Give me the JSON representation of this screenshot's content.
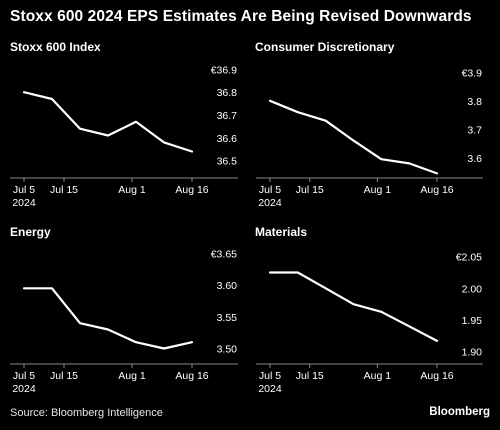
{
  "title": "Stoxx 600 2024 EPS Estimates Are Being Revised Downwards",
  "source": "Source: Bloomberg Intelligence",
  "brand": "Bloomberg",
  "colors": {
    "background": "#000000",
    "line": "#ffffff",
    "text": "#ffffff"
  },
  "chart_data": [
    {
      "type": "line",
      "title": "Stoxx 600 Index",
      "x_ticks": [
        "Jul 5",
        "Jul 15",
        "Aug 1",
        "Aug 16"
      ],
      "x_subtick": "2024",
      "x_range": [
        "2024-07-05",
        "2024-08-16"
      ],
      "x": [
        "2024-07-05",
        "2024-07-12",
        "2024-07-19",
        "2024-07-26",
        "2024-08-02",
        "2024-08-09",
        "2024-08-16"
      ],
      "values": [
        36.8,
        36.77,
        36.64,
        36.61,
        36.67,
        36.58,
        36.54
      ],
      "ylim": [
        36.45,
        36.95
      ],
      "y_ticks": [
        {
          "value": 36.9,
          "label": "€36.9"
        },
        {
          "value": 36.8,
          "label": "36.8"
        },
        {
          "value": 36.7,
          "label": "36.7"
        },
        {
          "value": 36.6,
          "label": "36.6"
        },
        {
          "value": 36.5,
          "label": "36.5"
        }
      ]
    },
    {
      "type": "line",
      "title": "Consumer Discretionary",
      "x_ticks": [
        "Jul 5",
        "Jul 15",
        "Aug 1",
        "Aug 16"
      ],
      "x_subtick": "2024",
      "x_range": [
        "2024-07-05",
        "2024-08-16"
      ],
      "x": [
        "2024-07-05",
        "2024-07-12",
        "2024-07-19",
        "2024-07-26",
        "2024-08-02",
        "2024-08-09",
        "2024-08-16"
      ],
      "values": [
        3.8,
        3.76,
        3.73,
        3.66,
        3.595,
        3.58,
        3.545
      ],
      "ylim": [
        3.55,
        3.95
      ],
      "y_ticks": [
        {
          "value": 3.9,
          "label": "€3.9"
        },
        {
          "value": 3.8,
          "label": "3.8"
        },
        {
          "value": 3.7,
          "label": "3.7"
        },
        {
          "value": 3.6,
          "label": "3.6"
        }
      ]
    },
    {
      "type": "line",
      "title": "Energy",
      "x_ticks": [
        "Jul 5",
        "Jul 15",
        "Aug 1",
        "Aug 16"
      ],
      "x_subtick": "2024",
      "x_range": [
        "2024-07-05",
        "2024-08-16"
      ],
      "x": [
        "2024-07-05",
        "2024-07-12",
        "2024-07-19",
        "2024-07-26",
        "2024-08-02",
        "2024-08-09",
        "2024-08-16"
      ],
      "values": [
        3.595,
        3.595,
        3.54,
        3.53,
        3.51,
        3.5,
        3.51
      ],
      "ylim": [
        3.485,
        3.665
      ],
      "y_ticks": [
        {
          "value": 3.65,
          "label": "€3.65"
        },
        {
          "value": 3.6,
          "label": "3.60"
        },
        {
          "value": 3.55,
          "label": "3.55"
        },
        {
          "value": 3.5,
          "label": "3.50"
        }
      ]
    },
    {
      "type": "line",
      "title": "Materials",
      "x_ticks": [
        "Jul 5",
        "Jul 15",
        "Aug 1",
        "Aug 16"
      ],
      "x_subtick": "2024",
      "x_range": [
        "2024-07-05",
        "2024-08-16"
      ],
      "x": [
        "2024-07-05",
        "2024-07-12",
        "2024-07-19",
        "2024-07-26",
        "2024-08-02",
        "2024-08-09",
        "2024-08-16"
      ],
      "values": [
        2.025,
        2.025,
        2.0,
        1.975,
        1.963,
        1.94,
        1.917
      ],
      "ylim": [
        1.89,
        2.07
      ],
      "y_ticks": [
        {
          "value": 2.05,
          "label": "€2.05"
        },
        {
          "value": 2.0,
          "label": "2.00"
        },
        {
          "value": 1.95,
          "label": "1.95"
        },
        {
          "value": 1.9,
          "label": "1.90"
        }
      ]
    }
  ]
}
